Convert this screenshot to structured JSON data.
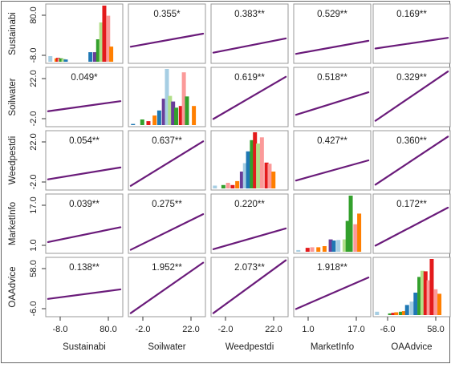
{
  "chart_data": {
    "type": "scatter",
    "title": "",
    "variables": [
      "Sustainabi",
      "Soilwater",
      "Weedpestdi",
      "MarketInfo",
      "OAAdvice"
    ],
    "y_tick_labels": [
      [
        "-8.0",
        "80.0"
      ],
      [
        "-2.0",
        "22.0"
      ],
      [
        "-2.0",
        "22.0"
      ],
      [
        "1.0",
        "17.0"
      ],
      [
        "-6.0",
        "58.0"
      ]
    ],
    "x_tick_labels": [
      [
        "-8.0",
        "80.0"
      ],
      [
        "-2.0",
        "22.0"
      ],
      [
        "-2.0",
        "22.0"
      ],
      [
        "1.0",
        "17.0"
      ],
      [
        "-6.0",
        "58.0"
      ]
    ],
    "lower_labels": [
      [
        "",
        "",
        "",
        "",
        ""
      ],
      [
        "0.049*",
        "",
        "",
        "",
        ""
      ],
      [
        "0.054**",
        "0.637**",
        "",
        "",
        ""
      ],
      [
        "0.039**",
        "0.275**",
        "0.220**",
        "",
        ""
      ],
      [
        "0.138**",
        "1.952**",
        "2.073**",
        "1.918**",
        ""
      ]
    ],
    "upper_labels": [
      [
        "",
        "0.355*",
        "0.383**",
        "0.529**",
        "0.169**"
      ],
      [
        "",
        "",
        "0.619**",
        "0.518**",
        "0.329**"
      ],
      [
        "",
        "",
        "",
        "0.427**",
        "0.360**"
      ],
      [
        "",
        "",
        "",
        "",
        "0.172**"
      ],
      [
        "",
        "",
        "",
        "",
        ""
      ]
    ],
    "fit_lines": [
      [
        null,
        [
          0.28,
          0.5
        ],
        [
          0.18,
          0.42
        ],
        [
          0.16,
          0.38
        ],
        [
          0.25,
          0.43
        ]
      ],
      [
        [
          0.26,
          0.43
        ],
        null,
        [
          0.13,
          0.84
        ],
        [
          0.2,
          0.58
        ],
        [
          0.1,
          0.93
        ]
      ],
      [
        [
          0.18,
          0.38
        ],
        [
          0.07,
          0.82
        ],
        null,
        [
          0.16,
          0.5
        ],
        [
          0.09,
          0.9
        ]
      ],
      [
        [
          0.19,
          0.44
        ],
        [
          0.06,
          0.66
        ],
        [
          0.07,
          0.42
        ],
        null,
        [
          0.13,
          0.77
        ]
      ],
      [
        [
          0.3,
          0.46
        ],
        [
          0.06,
          0.91
        ],
        [
          0.06,
          0.95
        ],
        [
          0.13,
          0.66
        ],
        null
      ]
    ],
    "histograms": [
      {
        "bars": [
          [
            0.06,
            0.1
          ],
          [
            0.14,
            0.06
          ],
          [
            0.16,
            0.07
          ],
          [
            0.18,
            0.06
          ],
          [
            0.2,
            0.06
          ],
          [
            0.23,
            0.05
          ],
          [
            0.26,
            0.04
          ],
          [
            0.58,
            0.17
          ],
          [
            0.64,
            0.17
          ],
          [
            0.68,
            0.4
          ],
          [
            0.72,
            0.7
          ],
          [
            0.76,
            1.0
          ],
          [
            0.81,
            0.82
          ],
          [
            0.85,
            0.27
          ]
        ],
        "colors": [
          "#a6cee3",
          "#ff7f00",
          "#e31a1c",
          "#fb9a99",
          "#33a02c",
          "#b2df8a",
          "#1f78b4",
          "#1f78b4",
          "#6a3d9a",
          "#33a02c",
          "#b2df8a",
          "#e31a1c",
          "#fb9a99",
          "#ff7f00"
        ]
      },
      {
        "bars": [
          [
            0.06,
            0.02
          ],
          [
            0.18,
            0.1
          ],
          [
            0.26,
            0.07
          ],
          [
            0.34,
            0.17
          ],
          [
            0.4,
            0.26
          ],
          [
            0.46,
            0.47
          ],
          [
            0.5,
            1.0
          ],
          [
            0.54,
            0.52
          ],
          [
            0.58,
            0.42
          ],
          [
            0.62,
            0.31
          ],
          [
            0.68,
            0.34
          ],
          [
            0.72,
            0.94
          ],
          [
            0.76,
            0.51
          ],
          [
            0.85,
            0.34
          ]
        ],
        "colors": [
          "#1f78b4",
          "#33a02c",
          "#e31a1c",
          "#ff7f00",
          "#1f78b4",
          "#6a3d9a",
          "#a6cee3",
          "#b2df8a",
          "#6a3d9a",
          "#33a02c",
          "#e31a1c",
          "#fb9a99",
          "#33a02c",
          "#ff7f00"
        ]
      },
      {
        "bars": [
          [
            0.05,
            0.05
          ],
          [
            0.16,
            0.06
          ],
          [
            0.22,
            0.1
          ],
          [
            0.28,
            0.06
          ],
          [
            0.34,
            0.13
          ],
          [
            0.4,
            0.3
          ],
          [
            0.44,
            0.45
          ],
          [
            0.48,
            0.66
          ],
          [
            0.53,
            0.86
          ],
          [
            0.57,
            1.0
          ],
          [
            0.61,
            0.8
          ],
          [
            0.66,
            0.91
          ],
          [
            0.72,
            0.46
          ],
          [
            0.76,
            0.44
          ],
          [
            0.81,
            0.3
          ]
        ],
        "colors": [
          "#a6cee3",
          "#33a02c",
          "#fb9a99",
          "#e31a1c",
          "#ff7f00",
          "#6a3d9a",
          "#a6cee3",
          "#1f78b4",
          "#33a02c",
          "#e31a1c",
          "#b2df8a",
          "#fb9a99",
          "#e31a1c",
          "#fb9a99",
          "#ff7f00"
        ]
      },
      {
        "bars": [
          [
            0.06,
            0.03
          ],
          [
            0.18,
            0.07
          ],
          [
            0.24,
            0.08
          ],
          [
            0.32,
            0.08
          ],
          [
            0.4,
            0.1
          ],
          [
            0.48,
            0.22
          ],
          [
            0.52,
            0.2
          ],
          [
            0.58,
            0.21
          ],
          [
            0.66,
            0.22
          ],
          [
            0.7,
            0.55
          ],
          [
            0.74,
            1.0
          ],
          [
            0.8,
            0.49
          ],
          [
            0.85,
            0.68
          ]
        ],
        "colors": [
          "#a6cee3",
          "#e31a1c",
          "#fb9a99",
          "#ff7f00",
          "#ff7f00",
          "#6a3d9a",
          "#1f78b4",
          "#a6cee3",
          "#b2df8a",
          "#33a02c",
          "#33a02c",
          "#fb9a99",
          "#ff7f00"
        ]
      },
      {
        "bars": [
          [
            0.05,
            0.06
          ],
          [
            0.22,
            0.03
          ],
          [
            0.26,
            0.04
          ],
          [
            0.3,
            0.05
          ],
          [
            0.36,
            0.06
          ],
          [
            0.4,
            0.07
          ],
          [
            0.44,
            0.18
          ],
          [
            0.5,
            0.24
          ],
          [
            0.55,
            0.4
          ],
          [
            0.6,
            0.68
          ],
          [
            0.64,
            0.79
          ],
          [
            0.68,
            0.78
          ],
          [
            0.72,
            0.62
          ],
          [
            0.76,
            1.0
          ],
          [
            0.81,
            0.46
          ],
          [
            0.86,
            0.38
          ]
        ],
        "colors": [
          "#a6cee3",
          "#33a02c",
          "#e31a1c",
          "#ff7f00",
          "#33a02c",
          "#ff7f00",
          "#1f78b4",
          "#a6cee3",
          "#1f78b4",
          "#33a02c",
          "#b2df8a",
          "#e31a1c",
          "#fb9a99",
          "#e31a1c",
          "#fb9a99",
          "#ff7f00"
        ]
      }
    ],
    "line_color": "#6a1b7a",
    "panel_border_color": "#999999",
    "outer_frame_color": "#666666"
  }
}
